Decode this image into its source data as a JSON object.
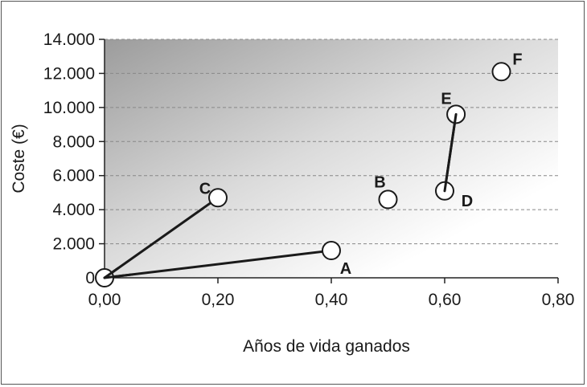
{
  "chart_data": {
    "type": "scatter",
    "title": "",
    "xlabel": "Años de vida ganados",
    "ylabel": "Coste (€)",
    "xlim": [
      0,
      0.8
    ],
    "ylim": [
      0,
      14000
    ],
    "x_ticks": [
      0,
      0.2,
      0.4,
      0.6,
      0.8
    ],
    "x_tick_labels": [
      "0,00",
      "0,20",
      "0,40",
      "0,60",
      "0,80"
    ],
    "y_ticks": [
      0,
      2000,
      4000,
      6000,
      8000,
      10000,
      12000,
      14000
    ],
    "y_tick_labels": [
      "0",
      "2.000",
      "4.000",
      "6.000",
      "8.000",
      "10.000",
      "12.000",
      "14.000"
    ],
    "grid": "horizontal dashed",
    "points": [
      {
        "label": "",
        "x": 0.0,
        "y": 0
      },
      {
        "label": "A",
        "x": 0.4,
        "y": 1600
      },
      {
        "label": "B",
        "x": 0.5,
        "y": 4600
      },
      {
        "label": "C",
        "x": 0.2,
        "y": 4700
      },
      {
        "label": "D",
        "x": 0.6,
        "y": 5100
      },
      {
        "label": "E",
        "x": 0.62,
        "y": 9600
      },
      {
        "label": "F",
        "x": 0.7,
        "y": 12100
      }
    ],
    "segments": [
      {
        "from": [
          0.0,
          0
        ],
        "to": [
          0.2,
          4700
        ]
      },
      {
        "from": [
          0.0,
          0
        ],
        "to": [
          0.4,
          1600
        ]
      },
      {
        "from": [
          0.6,
          5100
        ],
        "to": [
          0.62,
          9600
        ]
      }
    ],
    "colors": {
      "marker_fill": "#ffffff",
      "marker_stroke": "#1a1a1a",
      "line": "#1a1a1a",
      "grid": "#888888",
      "plot_gradient_dark": "#a8a8a8",
      "plot_gradient_light": "#ffffff"
    }
  }
}
